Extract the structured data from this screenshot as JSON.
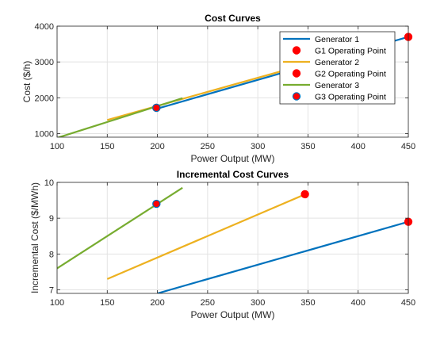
{
  "figure": {
    "background": "#ffffff"
  },
  "chart_data": [
    {
      "type": "line",
      "title": "Cost Curves",
      "xlabel": "Power Output (MW)",
      "ylabel": "Cost ($/h)",
      "xlim": [
        100,
        450
      ],
      "ylim": [
        900,
        4000
      ],
      "xticks": [
        100,
        150,
        200,
        250,
        300,
        350,
        400,
        450
      ],
      "yticks": [
        1000,
        2000,
        3000,
        4000
      ],
      "xtick_labels": [
        "100",
        "150",
        "200",
        "250",
        "300",
        "350",
        "400",
        "450"
      ],
      "ytick_labels": [
        "1000",
        "2000",
        "3000",
        "4000"
      ],
      "grid": true,
      "legend": {
        "placement": "top-right",
        "entries": [
          {
            "label": "Generator 1",
            "kind": "line",
            "color": "#0072BD"
          },
          {
            "label": "G1 Operating Point",
            "kind": "marker",
            "color": "#FF0000"
          },
          {
            "label": "Generator 2",
            "kind": "line",
            "color": "#EDB120"
          },
          {
            "label": "G2 Operating Point",
            "kind": "marker",
            "color": "#FF0000"
          },
          {
            "label": "Generator 3",
            "kind": "line",
            "color": "#77AC30"
          },
          {
            "label": "G3 Operating Point",
            "kind": "marker",
            "color": "#FF0000",
            "edge": "#0072BD"
          }
        ]
      },
      "series": [
        {
          "name": "Generator 1",
          "color": "#0072BD",
          "x": [
            200,
            450
          ],
          "y": [
            1700,
            3700
          ]
        },
        {
          "name": "Generator 2",
          "color": "#EDB120",
          "x": [
            150,
            350
          ],
          "y": [
            1380,
            2950
          ]
        },
        {
          "name": "Generator 3",
          "color": "#77AC30",
          "x": [
            100,
            225
          ],
          "y": [
            880,
            1990
          ]
        }
      ],
      "points": [
        {
          "name": "G1 Operating Point",
          "color": "#FF0000",
          "edge": "#FF0000",
          "x": 450,
          "y": 3700
        },
        {
          "name": "G2 Operating Point",
          "color": "#FF0000",
          "edge": "#FF0000",
          "x": 199,
          "y": 1720
        },
        {
          "name": "G3 Operating Point",
          "color": "#FF0000",
          "edge": "#0072BD",
          "x": 199,
          "y": 1720
        }
      ]
    },
    {
      "type": "line",
      "title": "Incremental Cost Curves",
      "xlabel": "Power Output (MW)",
      "ylabel": "Incremental Cost ($/MWh)",
      "xlim": [
        100,
        450
      ],
      "ylim": [
        6.9,
        10
      ],
      "xticks": [
        100,
        150,
        200,
        250,
        300,
        350,
        400,
        450
      ],
      "yticks": [
        7,
        8,
        9,
        10
      ],
      "xtick_labels": [
        "100",
        "150",
        "200",
        "250",
        "300",
        "350",
        "400",
        "450"
      ],
      "ytick_labels": [
        "7",
        "8",
        "9",
        "10"
      ],
      "grid": true,
      "series": [
        {
          "name": "Generator 1",
          "color": "#0072BD",
          "x": [
            200,
            450
          ],
          "y": [
            6.9,
            8.9
          ]
        },
        {
          "name": "Generator 2",
          "color": "#EDB120",
          "x": [
            150,
            350
          ],
          "y": [
            7.3,
            9.7
          ]
        },
        {
          "name": "Generator 3",
          "color": "#77AC30",
          "x": [
            100,
            225
          ],
          "y": [
            7.6,
            9.85
          ]
        }
      ],
      "points": [
        {
          "name": "G1 Operating Point",
          "color": "#FF0000",
          "edge": "#FF0000",
          "x": 450,
          "y": 8.9
        },
        {
          "name": "G2 Operating Point",
          "color": "#FF0000",
          "edge": "#FF0000",
          "x": 347,
          "y": 9.67
        },
        {
          "name": "G3 Operating Point",
          "color": "#FF0000",
          "edge": "#0072BD",
          "x": 199,
          "y": 9.4
        }
      ]
    }
  ]
}
